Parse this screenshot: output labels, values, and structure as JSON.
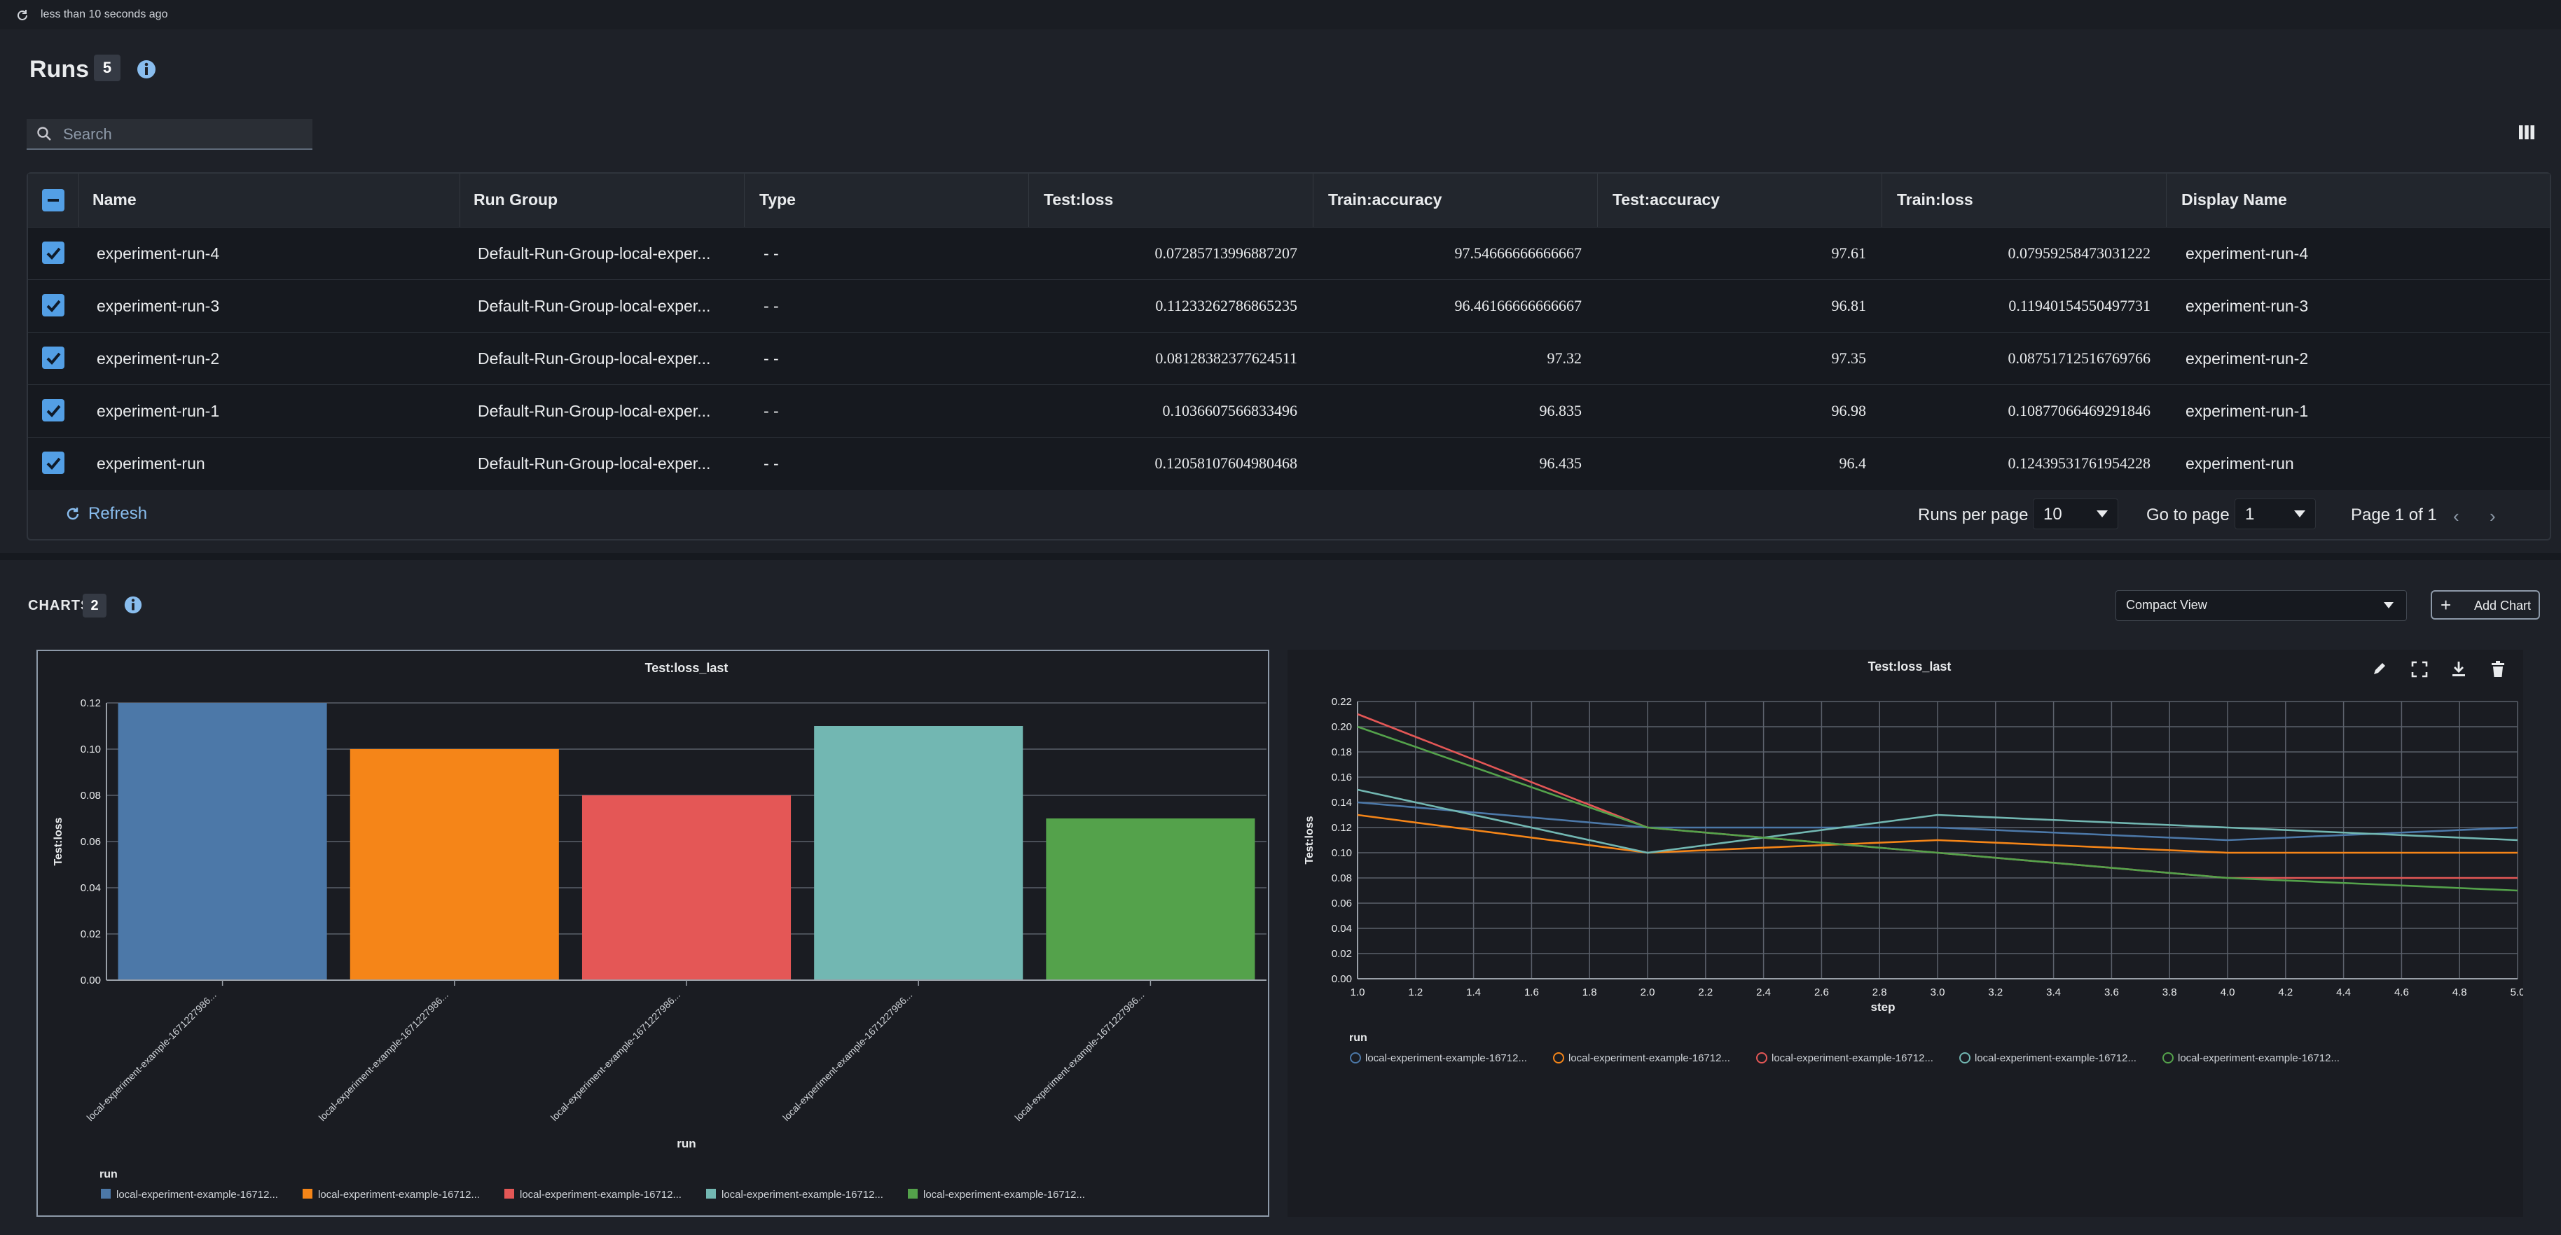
{
  "topbar": {
    "last_refresh": "less than 10 seconds ago"
  },
  "runs": {
    "title": "Runs",
    "count": "5",
    "search_placeholder": "Search",
    "columns": [
      "Name",
      "Run Group",
      "Type",
      "Test:loss",
      "Train:accuracy",
      "Test:accuracy",
      "Train:loss",
      "Display Name"
    ],
    "rows": [
      {
        "name": "experiment-run-4",
        "group": "Default-Run-Group-local-exper...",
        "type": "- -",
        "test_loss": "0.07285713996887207",
        "train_acc": "97.54666666666667",
        "test_acc": "97.61",
        "train_loss": "0.07959258473031222",
        "display": "experiment-run-4"
      },
      {
        "name": "experiment-run-3",
        "group": "Default-Run-Group-local-exper...",
        "type": "- -",
        "test_loss": "0.11233262786865235",
        "train_acc": "96.46166666666667",
        "test_acc": "96.81",
        "train_loss": "0.11940154550497731",
        "display": "experiment-run-3"
      },
      {
        "name": "experiment-run-2",
        "group": "Default-Run-Group-local-exper...",
        "type": "- -",
        "test_loss": "0.08128382377624511",
        "train_acc": "97.32",
        "test_acc": "97.35",
        "train_loss": "0.08751712516769766",
        "display": "experiment-run-2"
      },
      {
        "name": "experiment-run-1",
        "group": "Default-Run-Group-local-exper...",
        "type": "- -",
        "test_loss": "0.1036607566833496",
        "train_acc": "96.835",
        "test_acc": "96.98",
        "train_loss": "0.10877066469291846",
        "display": "experiment-run-1"
      },
      {
        "name": "experiment-run",
        "group": "Default-Run-Group-local-exper...",
        "type": "- -",
        "test_loss": "0.12058107604980468",
        "train_acc": "96.435",
        "test_acc": "96.4",
        "train_loss": "0.12439531761954228",
        "display": "experiment-run"
      }
    ],
    "footer": {
      "refresh": "Refresh",
      "runs_per_page_label": "Runs per page",
      "runs_per_page": "10",
      "goto_label": "Go to page",
      "goto_value": "1",
      "page_info": "Page 1 of 1"
    }
  },
  "charts": {
    "title": "CHARTS",
    "count": "2",
    "view_select": "Compact View",
    "add_chart": "Add Chart"
  },
  "colors": {
    "blue": "#4c78a8",
    "orange": "#f58518",
    "red": "#e45756",
    "teal": "#72b7b2",
    "green": "#54a24b",
    "accent": "#539fe5"
  },
  "icons": [
    "refresh-icon",
    "info-icon",
    "search-icon",
    "columns-icon",
    "edit-icon",
    "expand-icon",
    "download-icon",
    "delete-icon"
  ],
  "chart_data": [
    {
      "type": "bar",
      "title": "Test:loss_last",
      "xlabel": "run",
      "ylabel": "Test:loss",
      "ylim": [
        0,
        0.12
      ],
      "yticks": [
        "0.00",
        "0.02",
        "0.04",
        "0.06",
        "0.08",
        "0.10",
        "0.12"
      ],
      "categories": [
        "local-experiment-example-1671227986...",
        "local-experiment-example-1671227986...",
        "local-experiment-example-1671227986...",
        "local-experiment-example-1671227986...",
        "local-experiment-example-1671227986..."
      ],
      "values": [
        0.12,
        0.1,
        0.08,
        0.11,
        0.07
      ],
      "legend_title": "run",
      "legend": [
        "local-experiment-example-16712...",
        "local-experiment-example-16712...",
        "local-experiment-example-16712...",
        "local-experiment-example-16712...",
        "local-experiment-example-16712..."
      ],
      "colors": [
        "#4c78a8",
        "#f58518",
        "#e45756",
        "#72b7b2",
        "#54a24b"
      ]
    },
    {
      "type": "line",
      "title": "Test:loss_last",
      "xlabel": "step",
      "ylabel": "Test:loss",
      "xlim": [
        1.0,
        5.0
      ],
      "ylim": [
        0,
        0.22
      ],
      "xticks": [
        "1.0",
        "1.2",
        "1.4",
        "1.6",
        "1.8",
        "2.0",
        "2.2",
        "2.4",
        "2.6",
        "2.8",
        "3.0",
        "3.2",
        "3.4",
        "3.6",
        "3.8",
        "4.0",
        "4.2",
        "4.4",
        "4.6",
        "4.8",
        "5.0"
      ],
      "yticks": [
        "0.00",
        "0.02",
        "0.04",
        "0.06",
        "0.08",
        "0.10",
        "0.12",
        "0.14",
        "0.16",
        "0.18",
        "0.20",
        "0.22"
      ],
      "x": [
        1,
        2,
        3,
        4,
        5
      ],
      "legend_title": "run",
      "series": [
        {
          "values": [
            0.14,
            0.12,
            0.12,
            0.11,
            0.12
          ],
          "color": "#4c78a8"
        },
        {
          "values": [
            0.13,
            0.1,
            0.11,
            0.1,
            0.1
          ],
          "color": "#f58518"
        },
        {
          "values": [
            0.21,
            0.12,
            0.1,
            0.08,
            0.08
          ],
          "color": "#e45756"
        },
        {
          "values": [
            0.15,
            0.1,
            0.13,
            0.12,
            0.11
          ],
          "color": "#72b7b2"
        },
        {
          "values": [
            0.2,
            0.12,
            0.1,
            0.08,
            0.07
          ],
          "color": "#54a24b"
        }
      ],
      "legend": [
        "local-experiment-example-16712...",
        "local-experiment-example-16712...",
        "local-experiment-example-16712...",
        "local-experiment-example-16712...",
        "local-experiment-example-16712..."
      ]
    }
  ]
}
